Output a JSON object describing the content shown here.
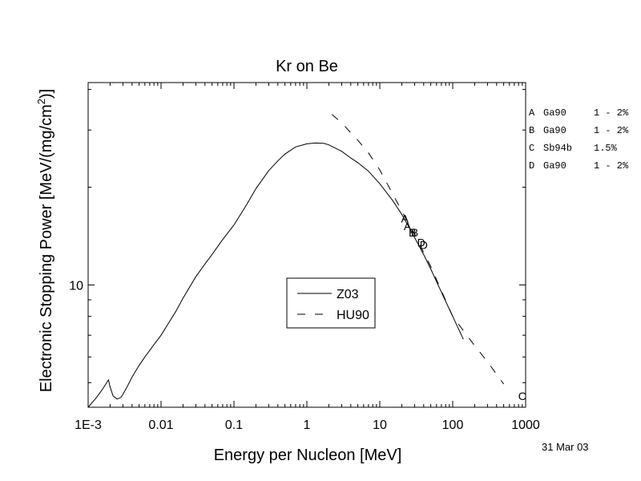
{
  "chart_data": {
    "type": "line",
    "title": "Kr on Be",
    "xlabel": "Energy per Nucleon [MeV]",
    "ylabel_main": "Electronic Stopping Power [MeV/(mg/cm",
    "ylabel_sup": "2",
    "ylabel_end": ")]",
    "xscale": "log",
    "yscale": "log",
    "xlim": [
      0.001,
      1000
    ],
    "ylim": [
      4.2,
      42
    ],
    "x_tick_labels": [
      {
        "value": 0.001,
        "label": "1E-3"
      },
      {
        "value": 0.01,
        "label": "0.01"
      },
      {
        "value": 0.1,
        "label": "0.1"
      },
      {
        "value": 1,
        "label": "1"
      },
      {
        "value": 10,
        "label": "10"
      },
      {
        "value": 100,
        "label": "100"
      },
      {
        "value": 1000,
        "label": "1000"
      }
    ],
    "y_tick_labels": [
      {
        "value": 10,
        "label": "10"
      }
    ],
    "legend_position": "center",
    "series": [
      {
        "name": "Z03",
        "style": "solid",
        "x": [
          0.001,
          0.0013,
          0.0016,
          0.0019,
          0.002,
          0.0022,
          0.0025,
          0.0028,
          0.003,
          0.0035,
          0.004,
          0.005,
          0.006,
          0.008,
          0.01,
          0.013,
          0.016,
          0.02,
          0.03,
          0.04,
          0.05,
          0.07,
          0.1,
          0.15,
          0.2,
          0.3,
          0.4,
          0.5,
          0.7,
          1,
          1.3,
          1.7,
          2,
          3,
          4,
          5,
          7,
          10,
          15,
          20,
          25,
          30,
          40,
          50,
          70,
          100,
          140
        ],
        "y": [
          4.2,
          4.5,
          4.8,
          5.1,
          4.85,
          4.55,
          4.45,
          4.5,
          4.6,
          4.9,
          5.2,
          5.65,
          6.0,
          6.55,
          7.0,
          7.7,
          8.3,
          9.1,
          10.6,
          11.6,
          12.4,
          13.8,
          15.3,
          17.7,
          19.8,
          22.5,
          24.1,
          25.3,
          26.6,
          27.2,
          27.35,
          27.3,
          27.0,
          25.8,
          24.6,
          23.8,
          22.4,
          20.5,
          18.2,
          16.5,
          15.1,
          14.0,
          12.4,
          11.2,
          9.5,
          8.0,
          6.8
        ]
      },
      {
        "name": "HU90",
        "style": "dashed",
        "x": [
          2.2,
          3,
          4,
          5,
          7,
          10,
          15,
          20,
          30,
          50,
          100,
          200,
          300,
          500
        ],
        "y": [
          33.5,
          31.6,
          29.4,
          27.9,
          25.5,
          22.6,
          19.1,
          16.9,
          14.3,
          11.4,
          8.0,
          6.5,
          5.8,
          4.95
        ]
      }
    ],
    "data_markers": [
      {
        "label": "A",
        "x": 22,
        "y": 16.0
      },
      {
        "label": "A",
        "x": 24,
        "y": 15.2
      },
      {
        "label": "B",
        "x": 28,
        "y": 14.5
      },
      {
        "label": "B",
        "x": 30,
        "y": 14.5
      },
      {
        "label": "D",
        "x": 37,
        "y": 13.5
      },
      {
        "label": "D",
        "x": 40,
        "y": 13.3
      },
      {
        "label": "C",
        "x": 900,
        "y": 4.55
      }
    ],
    "references": [
      {
        "key": "A",
        "source": "Ga90",
        "uncertainty": "1 - 2%"
      },
      {
        "key": "B",
        "source": "Ga90",
        "uncertainty": "1 - 2%"
      },
      {
        "key": "C",
        "source": "Sb94b",
        "uncertainty": "1.5%"
      },
      {
        "key": "D",
        "source": "Ga90",
        "uncertainty": "1 - 2%"
      }
    ],
    "date": "31 Mar 03"
  }
}
